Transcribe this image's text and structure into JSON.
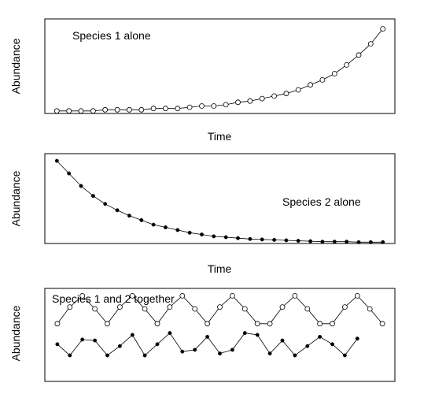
{
  "chart_data": [
    {
      "type": "line",
      "title": "",
      "annotation": "Species 1 alone",
      "xlabel": "Time",
      "ylabel": "Abundance",
      "grid": false,
      "series": [
        {
          "marker": "open",
          "x": [
            0,
            1,
            2,
            3,
            4,
            5,
            6,
            7,
            8,
            9,
            10,
            11,
            12,
            13,
            14,
            15,
            16,
            17,
            18,
            19,
            20,
            21,
            22,
            23,
            24,
            25,
            26,
            27
          ],
          "y": [
            0.02,
            0.02,
            0.02,
            0.02,
            0.03,
            0.03,
            0.03,
            0.03,
            0.04,
            0.04,
            0.04,
            0.05,
            0.06,
            0.06,
            0.07,
            0.09,
            0.1,
            0.12,
            0.14,
            0.16,
            0.19,
            0.23,
            0.27,
            0.32,
            0.39,
            0.47,
            0.56,
            0.68
          ]
        }
      ],
      "xlim": [
        -1,
        28
      ],
      "ylim": [
        0,
        0.76
      ]
    },
    {
      "type": "line",
      "title": "",
      "annotation": "Species 2 alone",
      "xlabel": "Time",
      "ylabel": "Abundance",
      "grid": false,
      "series": [
        {
          "marker": "filled",
          "x": [
            0,
            1,
            2,
            3,
            4,
            5,
            6,
            7,
            8,
            9,
            10,
            11,
            12,
            13,
            14,
            15,
            16,
            17,
            18,
            19,
            20,
            21,
            22,
            23,
            24,
            25,
            26,
            27
          ],
          "y": [
            0.92,
            0.78,
            0.64,
            0.53,
            0.44,
            0.37,
            0.31,
            0.26,
            0.21,
            0.18,
            0.15,
            0.12,
            0.1,
            0.08,
            0.07,
            0.06,
            0.05,
            0.045,
            0.04,
            0.035,
            0.03,
            0.025,
            0.02,
            0.02,
            0.02,
            0.015,
            0.015,
            0.015
          ]
        }
      ],
      "xlim": [
        -1,
        28
      ],
      "ylim": [
        0,
        1.0
      ]
    },
    {
      "type": "line",
      "title": "",
      "annotation": "Species 1 and 2 together",
      "xlabel": "",
      "ylabel": "Abundance",
      "grid": false,
      "series": [
        {
          "marker": "open",
          "x": [
            0,
            1,
            2,
            3,
            4,
            5,
            6,
            7,
            8,
            9,
            10,
            11,
            12,
            13,
            14,
            15,
            16,
            17,
            18,
            19,
            20,
            21,
            22,
            23,
            24,
            25,
            26
          ],
          "y": [
            0.62,
            0.8,
            0.92,
            0.78,
            0.62,
            0.8,
            0.92,
            0.78,
            0.62,
            0.8,
            0.92,
            0.78,
            0.62,
            0.8,
            0.92,
            0.78,
            0.62,
            0.62,
            0.8,
            0.92,
            0.78,
            0.62,
            0.62,
            0.8,
            0.92,
            0.78,
            0.62
          ]
        },
        {
          "marker": "filled",
          "x": [
            0,
            1,
            2,
            3,
            4,
            5,
            6,
            7,
            8,
            9,
            10,
            11,
            12,
            13,
            14,
            15,
            16,
            17,
            18,
            19,
            20,
            21,
            22,
            23,
            24
          ],
          "y": [
            0.4,
            0.28,
            0.45,
            0.44,
            0.28,
            0.38,
            0.5,
            0.28,
            0.4,
            0.52,
            0.32,
            0.34,
            0.48,
            0.3,
            0.34,
            0.52,
            0.5,
            0.3,
            0.44,
            0.28,
            0.38,
            0.48,
            0.4,
            0.28,
            0.46
          ]
        }
      ],
      "xlim": [
        -1,
        27
      ],
      "ylim": [
        0,
        1.0
      ]
    }
  ]
}
